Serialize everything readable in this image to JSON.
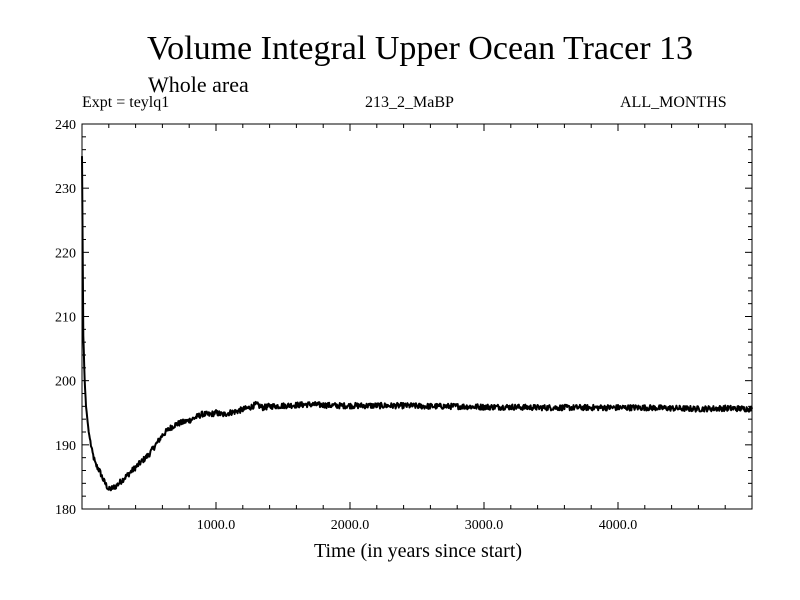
{
  "chart_data": {
    "type": "line",
    "title": "Volume Integral Upper Ocean Tracer 13",
    "subtitle": "Whole area",
    "annotations": {
      "experiment": "Expt = teylq1",
      "run": "213_2_MaBP",
      "months": "ALL_MONTHS"
    },
    "xlabel": "Time (in years since start)",
    "ylabel": "",
    "xlim": [
      0,
      5000
    ],
    "ylim": [
      180,
      240
    ],
    "x_ticks": [
      1000,
      2000,
      3000,
      4000
    ],
    "x_tick_labels": [
      "1000.0",
      "2000.0",
      "3000.0",
      "4000.0"
    ],
    "y_ticks": [
      180,
      190,
      200,
      210,
      220,
      230,
      240
    ],
    "y_tick_labels": [
      "180",
      "190",
      "200",
      "210",
      "220",
      "230",
      "240"
    ],
    "grid": false,
    "series": [
      {
        "name": "tracer13",
        "color": "#000000",
        "x": [
          0,
          5,
          10,
          20,
          30,
          50,
          75,
          100,
          130,
          160,
          200,
          250,
          300,
          350,
          400,
          450,
          500,
          550,
          600,
          650,
          700,
          750,
          800,
          850,
          900,
          950,
          1000,
          1050,
          1100,
          1150,
          1200,
          1250,
          1300,
          1350,
          1400,
          1500,
          1600,
          1700,
          1800,
          1900,
          2000,
          2200,
          2400,
          2600,
          2800,
          3000,
          3200,
          3400,
          3600,
          3800,
          4000,
          4200,
          4400,
          4600,
          4800,
          5000
        ],
        "values": [
          235,
          220,
          207,
          200,
          196,
          192,
          189,
          187,
          186,
          184.5,
          183,
          183.5,
          184.5,
          185.5,
          186.5,
          187.5,
          188.5,
          190,
          191.5,
          192.5,
          193.2,
          193.5,
          193.8,
          194.3,
          194.8,
          194.7,
          195,
          194.7,
          195,
          195.2,
          195.5,
          195.8,
          196.3,
          195.8,
          196,
          196.1,
          196.2,
          196.3,
          196.2,
          196.1,
          196.1,
          196.1,
          196.1,
          196,
          196,
          195.9,
          195.9,
          195.8,
          195.8,
          195.8,
          195.8,
          195.8,
          195.7,
          195.6,
          195.7,
          195.6
        ]
      }
    ]
  }
}
